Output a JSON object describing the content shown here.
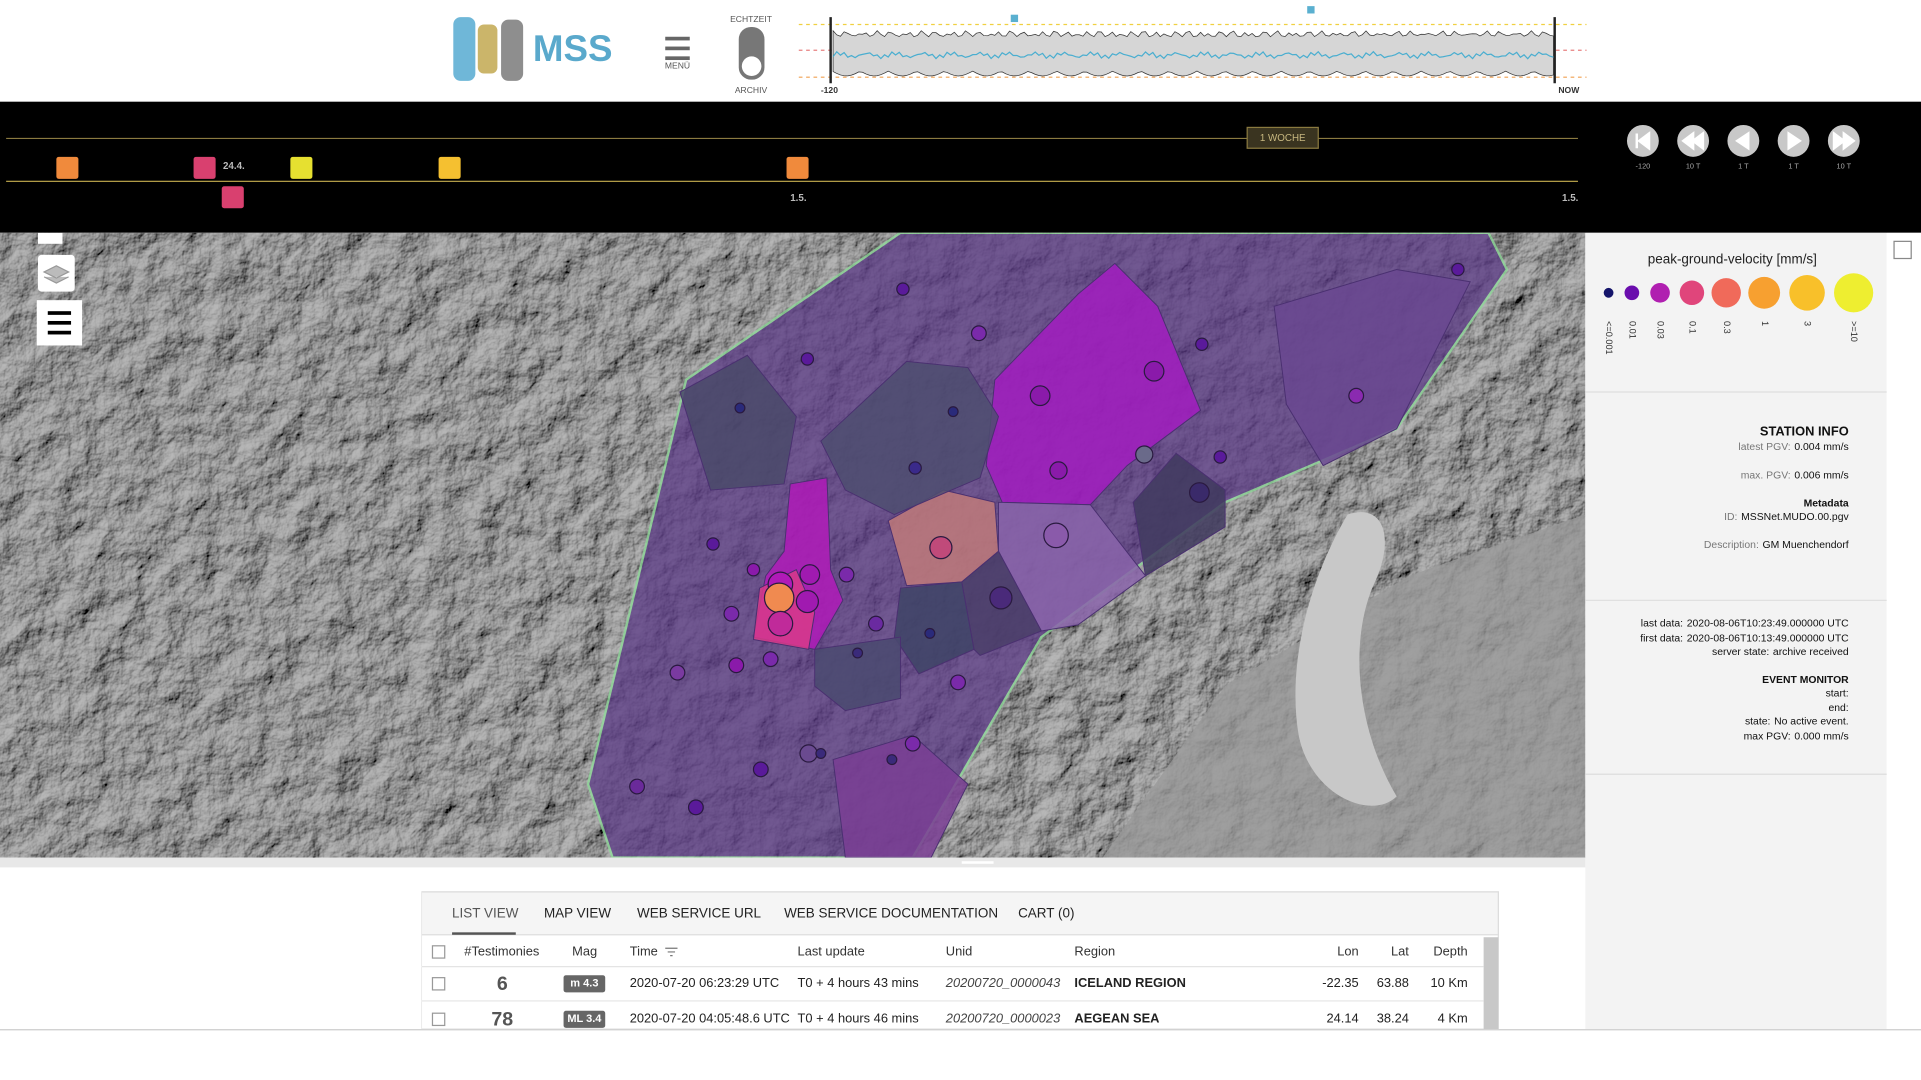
{
  "header": {
    "logo": "MSS",
    "menu": "MENÜ",
    "realtime": "ECHTZEIT",
    "archive": "ARCHIV",
    "sparkline_start": "-120",
    "sparkline_end": "NOW"
  },
  "timeline": {
    "labels": [
      "24.4.",
      "1.5.",
      "1.5."
    ],
    "window": "1 WOCHE",
    "buttons": [
      "-120",
      "10 T",
      "1 T",
      "1 T",
      "10 T"
    ]
  },
  "legend": {
    "title": "peak-ground-velocity [mm/s]",
    "labels": [
      "<=0.001",
      "0.01",
      "0.03",
      "0.1",
      "0.3",
      "1",
      "3",
      ">=10"
    ]
  },
  "station_info": {
    "title": "STATION INFO",
    "latest_pgv_label": "latest PGV:",
    "latest_pgv": "0.004 mm/s",
    "max_pgv_label": "max. PGV:",
    "max_pgv": "0.006 mm/s",
    "metadata": "Metadata",
    "id_label": "ID:",
    "id": "MSSNet.MUDO.00.pgv",
    "description_label": "Description:",
    "description": "GM Muenchendorf",
    "last_data_label": "last data:",
    "last_data": "2020-08-06T10:23:49.000000 UTC",
    "first_data_label": "first data:",
    "first_data": "2020-08-06T10:13:49.000000 UTC",
    "server_state_label": "server state:",
    "server_state": "archive received"
  },
  "event_monitor": {
    "title": "EVENT MONITOR",
    "start_label": "start:",
    "end_label": "end:",
    "state_label": "state:",
    "state": "No active event.",
    "max_pgv_label": "max PGV:",
    "max_pgv": "0.000 mm/s"
  },
  "tabs": [
    "LIST VIEW",
    "MAP VIEW",
    "WEB SERVICE URL",
    "WEB SERVICE DOCUMENTATION",
    "CART (0)"
  ],
  "table": {
    "columns": [
      "#Testimonies",
      "Mag",
      "Time",
      "Last update",
      "Unid",
      "Region",
      "Lon",
      "Lat",
      "Depth"
    ],
    "rows": [
      [
        "6",
        "m 4.3",
        "2020-07-20 06:23:29 UTC",
        "T0 + 4 hours 43 mins",
        "20200720_0000043",
        "ICELAND REGION",
        "-22.35",
        "63.88",
        "10 Km"
      ],
      [
        "78",
        "ML 3.4",
        "2020-07-20 04:05:48.6 UTC",
        "T0 + 4 hours 46 mins",
        "20200720_0000023",
        "AEGEAN SEA",
        "24.14",
        "38.24",
        "4 Km"
      ]
    ]
  }
}
